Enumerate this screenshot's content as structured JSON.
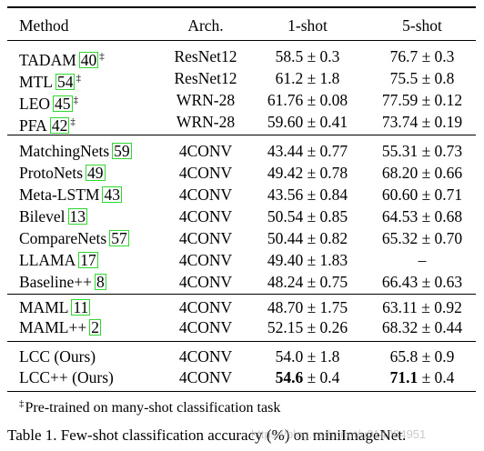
{
  "table": {
    "headers": {
      "method": "Method",
      "arch": "Arch.",
      "one_shot": "1-shot",
      "five_shot": "5-shot"
    },
    "groups": [
      [
        {
          "method": "TADAM",
          "ref": "40",
          "dagger": "‡",
          "arch": "ResNet12",
          "one": "58.5 ± 0.3",
          "five": "76.7 ± 0.3"
        },
        {
          "method": "MTL",
          "ref": "54",
          "dagger": "‡",
          "arch": "ResNet12",
          "one": "61.2 ± 1.8",
          "five": "75.5 ± 0.8"
        },
        {
          "method": "LEO",
          "ref": "45",
          "dagger": "‡",
          "arch": "WRN-28",
          "one": "61.76 ± 0.08",
          "five": "77.59 ± 0.12"
        },
        {
          "method": "PFA",
          "ref": "42",
          "dagger": "‡",
          "arch": "WRN-28",
          "one": "59.60 ± 0.41",
          "five": "73.74 ± 0.19"
        }
      ],
      [
        {
          "method": "MatchingNets",
          "ref": "59",
          "arch": "4CONV",
          "one": "43.44 ± 0.77",
          "five": "55.31 ± 0.73"
        },
        {
          "method": "ProtoNets",
          "ref": "49",
          "arch": "4CONV",
          "one": "49.42 ± 0.78",
          "five": "68.20 ± 0.66"
        },
        {
          "method": "Meta-LSTM",
          "ref": "43",
          "arch": "4CONV",
          "one": "43.56 ± 0.84",
          "five": "60.60 ± 0.71"
        },
        {
          "method": "Bilevel",
          "ref": "13",
          "arch": "4CONV",
          "one": "50.54 ± 0.85",
          "five": "64.53 ± 0.68"
        },
        {
          "method": "CompareNets",
          "ref": "57",
          "arch": "4CONV",
          "one": "50.44 ± 0.82",
          "five": "65.32 ± 0.70"
        },
        {
          "method": "LLAMA",
          "ref": "17",
          "arch": "4CONV",
          "one": "49.40 ± 1.83",
          "five": "–"
        },
        {
          "method": "Baseline++",
          "ref": "8",
          "arch": "4CONV",
          "one": "48.24 ± 0.75",
          "five": "66.43 ± 0.63"
        }
      ],
      [
        {
          "method": "MAML",
          "ref": "11",
          "arch": "4CONV",
          "one": "48.70 ± 1.75",
          "five": "63.11 ± 0.92"
        },
        {
          "method": "MAML++",
          "ref": "2",
          "arch": "4CONV",
          "one": "52.15 ± 0.26",
          "five": "68.32 ± 0.44"
        }
      ],
      [
        {
          "method": "LCC (Ours)",
          "arch": "4CONV",
          "one": "54.0 ± 1.8",
          "five": "65.8 ± 0.9"
        },
        {
          "method": "LCC++ (Ours)",
          "arch": "4CONV",
          "one_bold": "54.6",
          "one_rest": " ± 0.4",
          "five_bold": "71.1",
          "five_rest": " ± 0.4"
        }
      ]
    ]
  },
  "footnote": {
    "mark": "‡",
    "text": "Pre-trained on many-shot classification task"
  },
  "caption": "Table 1. Few-shot classification accuracy (%) on miniImageNet.",
  "watermark": "https://blog.csdn.net/u014084951"
}
